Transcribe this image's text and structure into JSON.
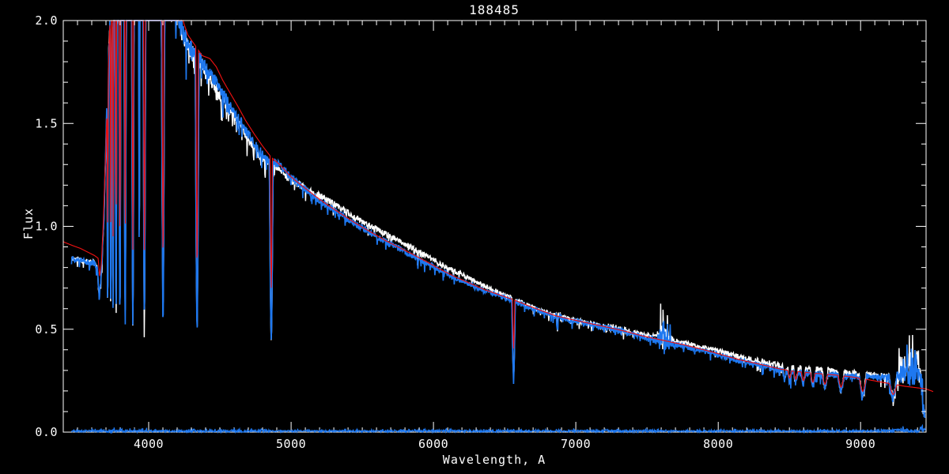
{
  "window": {
    "title": "188485",
    "background": "#000000"
  },
  "chart_data": {
    "type": "line",
    "title": "188485",
    "xlabel": "Wavelength, A",
    "ylabel": "Flux",
    "xlim": [
      3400,
      9460
    ],
    "ylim": [
      0.0,
      2.0
    ],
    "grid": false,
    "axis_color": "#FFFFFF",
    "background": "#000000",
    "x_major_ticks": [
      4000,
      5000,
      6000,
      7000,
      8000,
      9000
    ],
    "x_tick_labels": [
      "4000",
      "5000",
      "6000",
      "7000",
      "8000",
      "9000"
    ],
    "x_minor_step": 100,
    "y_major_ticks": [
      0.0,
      0.5,
      1.0,
      1.5,
      2.0
    ],
    "y_tick_labels": [
      "0.0",
      "0.5",
      "1.0",
      "1.5",
      "2.0"
    ],
    "y_minor_step": 0.1,
    "colors": {
      "observed_blue": "#1E78F0",
      "observed_white": "#FFFFFF",
      "model_red": "#ED1111"
    },
    "observed": {
      "envelope": [
        [
          3458,
          0.845
        ],
        [
          3520,
          0.838
        ],
        [
          3580,
          0.828
        ],
        [
          3620,
          0.822
        ],
        [
          3638,
          0.8
        ],
        [
          3652,
          0.66
        ],
        [
          3663,
          0.71
        ],
        [
          3674,
          0.86
        ],
        [
          3686,
          1.05
        ],
        [
          3700,
          1.42
        ],
        [
          3714,
          1.75
        ],
        [
          3728,
          1.98
        ],
        [
          3755,
          2.02
        ],
        [
          3790,
          2.08
        ],
        [
          3850,
          2.16
        ],
        [
          3950,
          2.3
        ],
        [
          4000,
          2.35
        ],
        [
          4090,
          2.3
        ],
        [
          4150,
          2.18
        ],
        [
          4185,
          2.1
        ],
        [
          4212,
          2.02
        ],
        [
          4232,
          1.96
        ],
        [
          4262,
          1.905
        ],
        [
          4300,
          1.862
        ],
        [
          4342,
          1.83
        ],
        [
          4400,
          1.772
        ],
        [
          4452,
          1.72
        ],
        [
          4502,
          1.662
        ],
        [
          4552,
          1.61
        ],
        [
          4602,
          1.557
        ],
        [
          4652,
          1.502
        ],
        [
          4702,
          1.443
        ],
        [
          4752,
          1.392
        ],
        [
          4802,
          1.347
        ],
        [
          4861,
          1.318
        ],
        [
          4922,
          1.296
        ],
        [
          5002,
          1.236
        ],
        [
          5082,
          1.19
        ],
        [
          5162,
          1.145
        ],
        [
          5252,
          1.1
        ],
        [
          5352,
          1.055
        ],
        [
          5452,
          1.01
        ],
        [
          5552,
          0.97
        ],
        [
          5652,
          0.931
        ],
        [
          5752,
          0.894
        ],
        [
          5852,
          0.859
        ],
        [
          5952,
          0.823
        ],
        [
          6052,
          0.785
        ],
        [
          6152,
          0.75
        ],
        [
          6252,
          0.72
        ],
        [
          6352,
          0.69
        ],
        [
          6452,
          0.665
        ],
        [
          6563,
          0.636
        ],
        [
          6652,
          0.611
        ],
        [
          6752,
          0.586
        ],
        [
          6852,
          0.561
        ],
        [
          6952,
          0.545
        ],
        [
          7052,
          0.53
        ],
        [
          7152,
          0.515
        ],
        [
          7252,
          0.5
        ],
        [
          7352,
          0.486
        ],
        [
          7452,
          0.466
        ],
        [
          7552,
          0.451
        ],
        [
          7652,
          0.433
        ],
        [
          7752,
          0.419
        ],
        [
          7852,
          0.401
        ],
        [
          7952,
          0.386
        ],
        [
          8052,
          0.366
        ],
        [
          8152,
          0.346
        ],
        [
          8252,
          0.331
        ],
        [
          8352,
          0.316
        ],
        [
          8432,
          0.301
        ],
        [
          8522,
          0.291
        ],
        [
          8622,
          0.286
        ],
        [
          8722,
          0.281
        ],
        [
          8822,
          0.277
        ],
        [
          8922,
          0.273
        ],
        [
          9022,
          0.269
        ],
        [
          9122,
          0.265
        ],
        [
          9222,
          0.263
        ],
        [
          9292,
          0.269
        ],
        [
          9342,
          0.276
        ],
        [
          9402,
          0.276
        ],
        [
          9425,
          0.262
        ],
        [
          9438,
          0.12
        ],
        [
          9448,
          0.09
        ],
        [
          9452,
          0.09
        ]
      ],
      "lines": [
        [
          3712,
          0.56,
          5
        ],
        [
          3734,
          0.55,
          5
        ],
        [
          3750,
          0.55,
          5
        ],
        [
          3771,
          0.54,
          6
        ],
        [
          3798,
          0.53,
          7
        ],
        [
          3835,
          0.52,
          8
        ],
        [
          3889,
          0.52,
          9
        ],
        [
          3934,
          0.75,
          4
        ],
        [
          3970,
          0.51,
          10
        ],
        [
          4101,
          0.54,
          12
        ],
        [
          4340,
          0.51,
          13
        ],
        [
          4861,
          0.445,
          13
        ],
        [
          5890,
          0.8,
          4
        ],
        [
          6563,
          0.265,
          12
        ],
        [
          6870,
          0.5,
          6
        ],
        [
          8467,
          0.25,
          12
        ],
        [
          8502,
          0.245,
          13
        ],
        [
          8545,
          0.24,
          14
        ],
        [
          8598,
          0.235,
          15
        ],
        [
          8665,
          0.225,
          17
        ],
        [
          8750,
          0.215,
          19
        ],
        [
          8863,
          0.2,
          21
        ],
        [
          9015,
          0.18,
          24
        ],
        [
          9229,
          0.168,
          27
        ]
      ],
      "noise": {
        "amp": [
          [
            3458,
            0.013
          ],
          [
            3640,
            0.016
          ],
          [
            3690,
            0.03
          ],
          [
            3730,
            0.045
          ],
          [
            4100,
            0.05
          ],
          [
            4210,
            0.055
          ],
          [
            4320,
            0.04
          ],
          [
            4520,
            0.028
          ],
          [
            4820,
            0.022
          ],
          [
            5200,
            0.017
          ],
          [
            5800,
            0.014
          ],
          [
            6300,
            0.012
          ],
          [
            6700,
            0.011
          ],
          [
            6845,
            0.012
          ],
          [
            6880,
            0.026
          ],
          [
            6925,
            0.012
          ],
          [
            7160,
            0.013
          ],
          [
            7260,
            0.02
          ],
          [
            7380,
            0.012
          ],
          [
            7565,
            0.014
          ],
          [
            7600,
            0.075
          ],
          [
            7645,
            0.045
          ],
          [
            7695,
            0.013
          ],
          [
            8000,
            0.013
          ],
          [
            8430,
            0.015
          ],
          [
            8900,
            0.015
          ],
          [
            9180,
            0.017
          ],
          [
            9280,
            0.035
          ],
          [
            9350,
            0.055
          ],
          [
            9430,
            0.045
          ],
          [
            9455,
            0.03
          ]
        ],
        "spike_prob": 0.07,
        "spike_mult": 3.0,
        "up_zones": [
          [
            7570,
            7665
          ],
          [
            9265,
            9438
          ]
        ],
        "extra": [
          [
            4240,
            4830,
            0.14,
            3.2
          ],
          [
            7570,
            7665,
            0.25,
            2.0
          ],
          [
            9265,
            9435,
            0.32,
            3.2
          ]
        ]
      }
    },
    "model": {
      "envelope": [
        [
          3400,
          0.925
        ],
        [
          3460,
          0.908
        ],
        [
          3520,
          0.893
        ],
        [
          3580,
          0.872
        ],
        [
          3620,
          0.858
        ],
        [
          3645,
          0.845
        ],
        [
          3656,
          0.755
        ],
        [
          3668,
          0.82
        ],
        [
          3680,
          1.0
        ],
        [
          3695,
          1.3
        ],
        [
          3710,
          1.62
        ],
        [
          3725,
          1.95
        ],
        [
          3745,
          2.15
        ],
        [
          3800,
          2.3
        ],
        [
          4000,
          2.4
        ],
        [
          4140,
          2.35
        ],
        [
          4195,
          2.2
        ],
        [
          4228,
          2.06
        ],
        [
          4245,
          1.99
        ],
        [
          4275,
          1.93
        ],
        [
          4320,
          1.885
        ],
        [
          4375,
          1.83
        ],
        [
          4430,
          1.815
        ],
        [
          4475,
          1.775
        ],
        [
          4520,
          1.71
        ],
        [
          4570,
          1.65
        ],
        [
          4625,
          1.585
        ],
        [
          4680,
          1.515
        ],
        [
          4740,
          1.45
        ],
        [
          4800,
          1.39
        ],
        [
          4861,
          1.335
        ],
        [
          4920,
          1.3
        ],
        [
          5000,
          1.24
        ],
        [
          5090,
          1.19
        ],
        [
          5170,
          1.147
        ],
        [
          5260,
          1.102
        ],
        [
          5360,
          1.057
        ],
        [
          5460,
          1.012
        ],
        [
          5560,
          0.972
        ],
        [
          5660,
          0.932
        ],
        [
          5760,
          0.897
        ],
        [
          5860,
          0.862
        ],
        [
          5960,
          0.825
        ],
        [
          6060,
          0.787
        ],
        [
          6160,
          0.752
        ],
        [
          6260,
          0.722
        ],
        [
          6360,
          0.692
        ],
        [
          6460,
          0.668
        ],
        [
          6560,
          0.644
        ],
        [
          6660,
          0.616
        ],
        [
          6760,
          0.59
        ],
        [
          6860,
          0.565
        ],
        [
          6960,
          0.549
        ],
        [
          7060,
          0.534
        ],
        [
          7160,
          0.519
        ],
        [
          7260,
          0.504
        ],
        [
          7360,
          0.488
        ],
        [
          7460,
          0.469
        ],
        [
          7560,
          0.454
        ],
        [
          7660,
          0.439
        ],
        [
          7760,
          0.424
        ],
        [
          7860,
          0.407
        ],
        [
          7960,
          0.389
        ],
        [
          8060,
          0.369
        ],
        [
          8160,
          0.35
        ],
        [
          8260,
          0.335
        ],
        [
          8360,
          0.319
        ],
        [
          8440,
          0.306
        ],
        [
          8530,
          0.296
        ],
        [
          8630,
          0.289
        ],
        [
          8730,
          0.283
        ],
        [
          8830,
          0.277
        ],
        [
          8930,
          0.269
        ],
        [
          9030,
          0.258
        ],
        [
          9130,
          0.245
        ],
        [
          9230,
          0.233
        ],
        [
          9310,
          0.223
        ],
        [
          9390,
          0.216
        ],
        [
          9460,
          0.21
        ],
        [
          9510,
          0.197
        ]
      ],
      "lines": [
        [
          3712,
          0.95,
          4
        ],
        [
          3734,
          0.95,
          4
        ],
        [
          3750,
          0.95,
          4
        ],
        [
          3771,
          0.93,
          4
        ],
        [
          3798,
          0.92,
          5
        ],
        [
          3835,
          0.9,
          5
        ],
        [
          3889,
          0.88,
          6
        ],
        [
          3970,
          0.85,
          7
        ],
        [
          4101,
          0.83,
          8
        ],
        [
          4340,
          0.79,
          8
        ],
        [
          4861,
          0.7,
          8
        ],
        [
          6563,
          0.405,
          8
        ],
        [
          8502,
          0.262,
          12
        ],
        [
          8545,
          0.256,
          13
        ],
        [
          8598,
          0.25,
          14
        ],
        [
          8665,
          0.242,
          16
        ],
        [
          8750,
          0.232,
          18
        ],
        [
          8863,
          0.218,
          20
        ],
        [
          9015,
          0.198,
          23
        ],
        [
          9229,
          0.183,
          26
        ]
      ],
      "noise": null
    },
    "floor": {
      "envelope": [
        [
          3458,
          0.005
        ],
        [
          9455,
          0.005
        ]
      ],
      "lines": [],
      "noise": {
        "amp": [
          [
            3458,
            0.0035
          ],
          [
            3720,
            0.007
          ],
          [
            4130,
            0.0045
          ],
          [
            4820,
            0.006
          ],
          [
            4980,
            0.0038
          ],
          [
            6420,
            0.0055
          ],
          [
            6760,
            0.0038
          ],
          [
            7520,
            0.006
          ],
          [
            7720,
            0.004
          ],
          [
            9080,
            0.0045
          ],
          [
            9270,
            0.011
          ],
          [
            9455,
            0.013
          ]
        ],
        "spike_prob": 0.12,
        "spike_mult": 2.2,
        "up_zones": [
          [
            3400,
            9460
          ]
        ],
        "extra": []
      }
    },
    "white_offset": [
      [
        3458,
        0
      ],
      [
        4200,
        0
      ],
      [
        4300,
        -0.015
      ],
      [
        4420,
        -0.024
      ],
      [
        4700,
        -0.026
      ],
      [
        5000,
        -0.012
      ],
      [
        5120,
        0.008
      ],
      [
        5250,
        0.03
      ],
      [
        5750,
        0.038
      ],
      [
        6250,
        0.028
      ],
      [
        6480,
        0.014
      ],
      [
        6700,
        0.007
      ],
      [
        7050,
        0.005
      ],
      [
        7400,
        0.009
      ],
      [
        7650,
        0.015
      ],
      [
        7950,
        0.018
      ],
      [
        8450,
        0.02
      ],
      [
        8750,
        0.022
      ],
      [
        9050,
        0.01
      ],
      [
        9455,
        0.004
      ]
    ],
    "series": [
      {
        "name": "observed-spectrum-white",
        "ref": "observed",
        "color_key": "observed_white",
        "width": 1.5,
        "seed": 11,
        "range": [
          3458,
          9452
        ],
        "use_white_offset": true,
        "after_axes": false
      },
      {
        "name": "observed-spectrum-blue",
        "ref": "observed",
        "color_key": "observed_blue",
        "width": 1.7,
        "seed": 77,
        "range": [
          3458,
          9452
        ],
        "use_white_offset": false,
        "after_axes": false
      },
      {
        "name": "model-spectrum-red",
        "ref": "model",
        "color_key": "model_red",
        "width": 1.15,
        "seed": 3,
        "range": [
          3400,
          9510
        ],
        "use_white_offset": false,
        "after_axes": false
      },
      {
        "name": "noise-floor-spectrum",
        "ref": "floor",
        "color_key": "observed_blue",
        "width": 1.3,
        "seed": 5,
        "range": [
          3458,
          9455
        ],
        "use_white_offset": false,
        "after_axes": true
      }
    ]
  }
}
